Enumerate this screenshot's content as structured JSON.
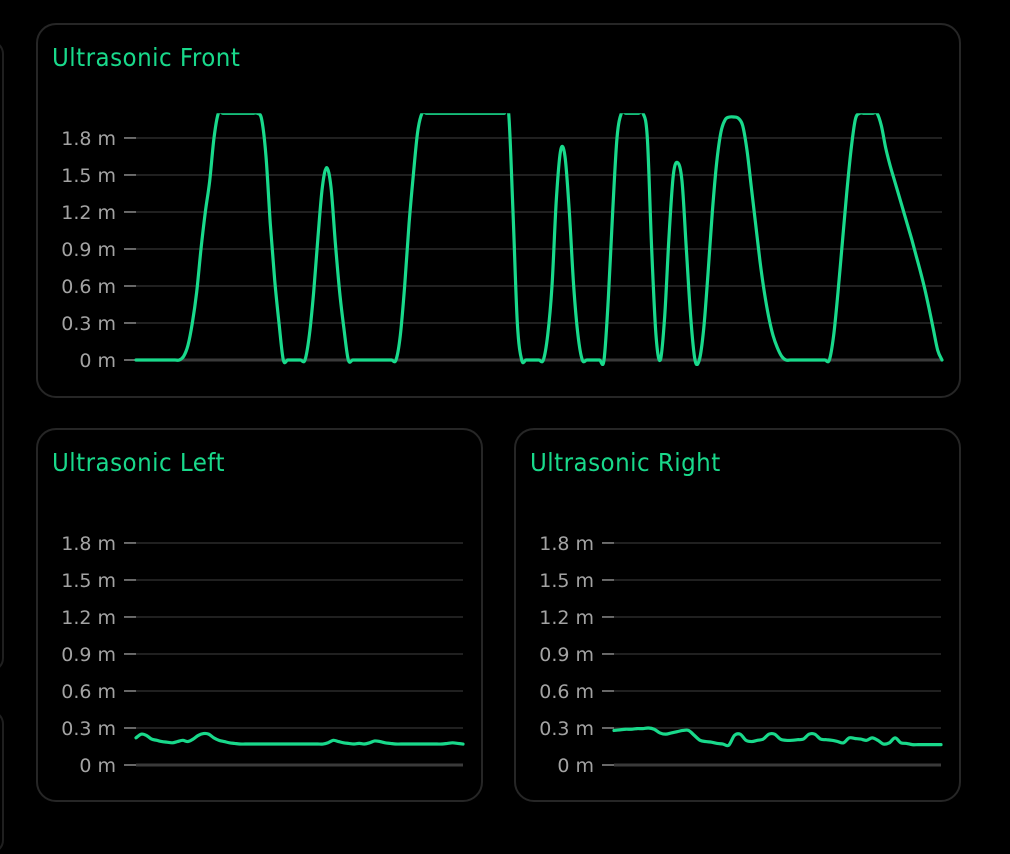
{
  "chart_data": [
    {
      "type": "line",
      "title": "Ultrasonic Front",
      "xlabel": "",
      "ylabel": "",
      "ylim": [
        0,
        2.0
      ],
      "yticks": [
        0,
        0.3,
        0.6,
        0.9,
        1.2,
        1.5,
        1.8
      ],
      "ytick_labels": [
        "0 m",
        "0.3 m",
        "0.6 m",
        "0.9 m",
        "1.2 m",
        "1.5 m",
        "1.8 m"
      ],
      "grid": true,
      "color": "#19d98b",
      "series": [
        {
          "values": [
            0,
            0,
            0,
            0,
            0,
            0,
            0,
            0,
            0,
            0,
            0,
            0.03,
            0.12,
            0.3,
            0.55,
            0.9,
            1.2,
            1.45,
            1.8,
            2.0,
            2.0,
            2.0,
            2.0,
            2.0,
            2.0,
            2.0,
            2.0,
            2.0,
            2.0,
            1.95,
            1.65,
            1.1,
            0.65,
            0.3,
            0,
            0,
            0,
            0,
            0,
            0,
            0.2,
            0.55,
            1.0,
            1.4,
            1.56,
            1.4,
            0.95,
            0.55,
            0.25,
            0,
            0,
            0,
            0,
            0,
            0,
            0,
            0,
            0,
            0,
            0,
            0,
            0.2,
            0.6,
            1.1,
            1.5,
            1.85,
            2.0,
            2.0,
            2.0,
            2.0,
            2.0,
            2.0,
            2.0,
            2.0,
            2.0,
            2.0,
            2.0,
            2.0,
            2.0,
            2.0,
            2.0,
            2.0,
            2.0,
            2.0,
            2.0,
            2.0,
            2.0,
            1.2,
            0.3,
            0,
            0,
            0,
            0,
            0,
            0,
            0.2,
            0.6,
            1.3,
            1.7,
            1.65,
            1.2,
            0.6,
            0.2,
            0,
            0,
            0,
            0,
            0,
            0,
            0.5,
            1.2,
            1.8,
            2.0,
            2.0,
            2.0,
            2.0,
            2.0,
            2.0,
            1.8,
            0.9,
            0.2,
            0,
            0.35,
            1.0,
            1.5,
            1.6,
            1.45,
            0.9,
            0.35,
            0,
            0,
            0.25,
            0.7,
            1.2,
            1.6,
            1.85,
            1.95,
            1.97,
            1.97,
            1.96,
            1.9,
            1.7,
            1.4,
            1.1,
            0.8,
            0.55,
            0.35,
            0.2,
            0.1,
            0.03,
            0,
            0,
            0,
            0,
            0,
            0,
            0,
            0,
            0,
            0,
            0,
            0.2,
            0.55,
            0.95,
            1.35,
            1.7,
            1.95,
            2.0,
            2.0,
            2.0,
            2.0,
            2.0,
            1.9,
            1.72,
            1.58,
            1.46,
            1.34,
            1.22,
            1.1,
            0.98,
            0.85,
            0.72,
            0.58,
            0.42,
            0.25,
            0.08,
            0
          ]
        }
      ]
    },
    {
      "type": "line",
      "title": "Ultrasonic Left",
      "xlabel": "",
      "ylabel": "",
      "ylim": [
        0,
        2.0
      ],
      "yticks": [
        0,
        0.3,
        0.6,
        0.9,
        1.2,
        1.5,
        1.8
      ],
      "ytick_labels": [
        "0 m",
        "0.3 m",
        "0.6 m",
        "0.9 m",
        "1.2 m",
        "1.5 m",
        "1.8 m"
      ],
      "grid": true,
      "color": "#19d98b",
      "series": [
        {
          "values": [
            0.22,
            0.25,
            0.24,
            0.21,
            0.2,
            0.19,
            0.185,
            0.18,
            0.19,
            0.2,
            0.19,
            0.21,
            0.24,
            0.255,
            0.25,
            0.22,
            0.2,
            0.19,
            0.18,
            0.175,
            0.17,
            0.17,
            0.17,
            0.17,
            0.17,
            0.17,
            0.17,
            0.17,
            0.17,
            0.17,
            0.17,
            0.17,
            0.17,
            0.17,
            0.17,
            0.17,
            0.17,
            0.18,
            0.2,
            0.19,
            0.18,
            0.175,
            0.17,
            0.175,
            0.17,
            0.18,
            0.195,
            0.19,
            0.18,
            0.175,
            0.17,
            0.17,
            0.17,
            0.17,
            0.17,
            0.17,
            0.17,
            0.17,
            0.17,
            0.17,
            0.175,
            0.18,
            0.175,
            0.17
          ]
        }
      ]
    },
    {
      "type": "line",
      "title": "Ultrasonic Right",
      "xlabel": "",
      "ylabel": "",
      "ylim": [
        0,
        2.0
      ],
      "yticks": [
        0,
        0.3,
        0.6,
        0.9,
        1.2,
        1.5,
        1.8
      ],
      "ytick_labels": [
        "0 m",
        "0.3 m",
        "0.6 m",
        "0.9 m",
        "1.2 m",
        "1.5 m",
        "1.8 m"
      ],
      "grid": true,
      "color": "#19d98b",
      "series": [
        {
          "values": [
            0.28,
            0.285,
            0.29,
            0.29,
            0.295,
            0.295,
            0.3,
            0.29,
            0.26,
            0.25,
            0.26,
            0.27,
            0.28,
            0.28,
            0.24,
            0.2,
            0.19,
            0.185,
            0.175,
            0.17,
            0.16,
            0.24,
            0.25,
            0.2,
            0.19,
            0.2,
            0.21,
            0.25,
            0.25,
            0.21,
            0.2,
            0.2,
            0.205,
            0.21,
            0.25,
            0.25,
            0.21,
            0.205,
            0.2,
            0.19,
            0.18,
            0.22,
            0.215,
            0.21,
            0.2,
            0.22,
            0.2,
            0.17,
            0.18,
            0.22,
            0.18,
            0.175,
            0.165,
            0.165,
            0.165,
            0.165,
            0.165,
            0.165
          ]
        }
      ]
    }
  ]
}
